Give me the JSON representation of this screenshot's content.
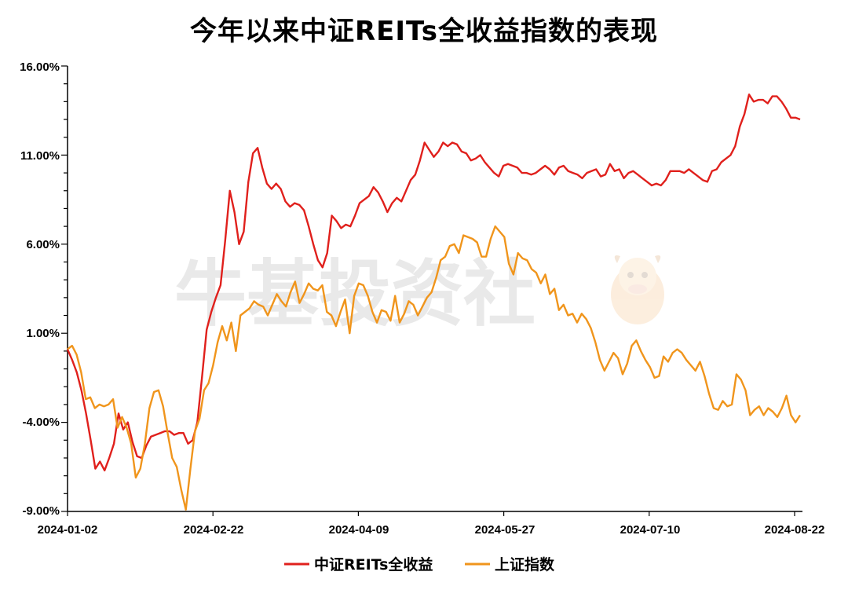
{
  "title": "今年以来中证REITs全收益指数的表现",
  "watermark": "牛基投资社",
  "chart_data": {
    "type": "line",
    "title": "今年以来中证REITs全收益指数的表现",
    "x_tick_labels": [
      "2024-01-02",
      "2024-02-22",
      "2024-04-09",
      "2024-05-27",
      "2024-07-10",
      "2024-08-22"
    ],
    "y_tick_labels": [
      "16.00%",
      "11.00%",
      "6.00%",
      "1.00%",
      "-4.00%",
      "-9.00%"
    ],
    "ylim": [
      -9,
      16
    ],
    "y_unit": "%",
    "grid": false,
    "legend_position": "bottom-center",
    "series": [
      {
        "name": "中证REITs全收益",
        "color": "#e0201c",
        "values": [
          0.1,
          -0.5,
          -1.2,
          -2.2,
          -3.5,
          -5,
          -6.6,
          -6.2,
          -6.7,
          -6,
          -5.2,
          -3.5,
          -4.4,
          -4,
          -5.1,
          -5.9,
          -6,
          -5.3,
          -4.8,
          -4.7,
          -4.6,
          -4.5,
          -4.5,
          -4.7,
          -4.6,
          -4.6,
          -5.2,
          -5,
          -4,
          -1.5,
          1.2,
          2.2,
          3,
          3.7,
          6.2,
          9,
          7.8,
          6,
          6.7,
          9.5,
          11.1,
          11.4,
          10.3,
          9.4,
          9.1,
          9.4,
          9.1,
          8.4,
          8.1,
          8.3,
          8.2,
          7.9,
          7,
          6,
          5.1,
          4.7,
          5.5,
          7.6,
          7.3,
          6.9,
          7.1,
          7,
          7.6,
          8.3,
          8.5,
          8.7,
          9.2,
          8.9,
          8.4,
          7.8,
          8.3,
          8.6,
          8.4,
          9,
          9.6,
          9.9,
          10.7,
          11.7,
          11.3,
          10.9,
          11.2,
          11.7,
          11.5,
          11.7,
          11.6,
          11.2,
          11.1,
          10.7,
          10.8,
          11,
          10.6,
          10.3,
          10,
          9.8,
          10.4,
          10.5,
          10.4,
          10.3,
          10,
          10,
          9.9,
          10,
          10.2,
          10.4,
          10.2,
          9.9,
          10.3,
          10.4,
          10.1,
          10,
          9.9,
          9.7,
          10,
          10.1,
          10.2,
          9.8,
          9.9,
          10.5,
          10.1,
          10.2,
          9.7,
          10,
          10.1,
          9.9,
          9.7,
          9.5,
          9.3,
          9.4,
          9.3,
          9.6,
          10.1,
          10.1,
          10.1,
          10,
          10.2,
          10,
          9.8,
          9.6,
          9.5,
          10.1,
          10.2,
          10.6,
          10.8,
          11,
          11.5,
          12.6,
          13.3,
          14.4,
          14,
          14.1,
          14.1,
          13.9,
          14.3,
          14.3,
          14,
          13.6,
          13.1,
          13.1,
          13
        ]
      },
      {
        "name": "上证指数",
        "color": "#f0951c",
        "values": [
          0.1,
          0.3,
          -0.2,
          -1.2,
          -2.7,
          -2.6,
          -3.2,
          -3,
          -3.1,
          -3,
          -2.7,
          -4.3,
          -3.7,
          -4.3,
          -5.2,
          -7.1,
          -6.6,
          -5.2,
          -3.2,
          -2.3,
          -2.2,
          -3.1,
          -4.6,
          -6,
          -6.5,
          -7.8,
          -8.9,
          -6.6,
          -4.5,
          -3.8,
          -2.2,
          -1.8,
          -0.8,
          0.5,
          1.4,
          0.6,
          1.6,
          0,
          2,
          2.2,
          2.4,
          2.8,
          2.6,
          2.5,
          2,
          2.6,
          3.2,
          2.8,
          2.5,
          3.3,
          3.9,
          2.7,
          3.2,
          3.8,
          3.5,
          3.4,
          3.7,
          2.2,
          2,
          1.4,
          2.2,
          2.9,
          1,
          3.1,
          3.8,
          3.7,
          3.1,
          2.2,
          1.6,
          2.3,
          2.2,
          1.7,
          3.1,
          1.6,
          2.1,
          2.8,
          2.6,
          2,
          2.5,
          3,
          3.3,
          4.1,
          5.1,
          5.3,
          5.9,
          6,
          5.5,
          6.5,
          6.4,
          6.3,
          6.1,
          5.3,
          5.3,
          6.3,
          7,
          6.7,
          6.4,
          4.9,
          4.3,
          5.5,
          5.2,
          5.1,
          4.6,
          4.4,
          3.8,
          4.3,
          3.2,
          3.5,
          2.3,
          2.6,
          2,
          2.1,
          1.6,
          2.1,
          1.8,
          1.3,
          0.5,
          -0.5,
          -1.1,
          -0.6,
          -0.1,
          -0.4,
          -1.3,
          -0.7,
          0.3,
          0.6,
          0,
          -0.5,
          -0.9,
          -1.5,
          -1.4,
          -0.3,
          -0.6,
          -0.1,
          0.1,
          -0.1,
          -0.5,
          -0.8,
          -1.1,
          -0.6,
          -1.4,
          -2.4,
          -3.2,
          -3.3,
          -2.8,
          -3.1,
          -3,
          -1.3,
          -1.6,
          -2.2,
          -3.6,
          -3.3,
          -3.1,
          -3.6,
          -3.2,
          -3.4,
          -3.7,
          -3.2,
          -2.5,
          -3.6,
          -4,
          -3.6
        ]
      }
    ]
  }
}
